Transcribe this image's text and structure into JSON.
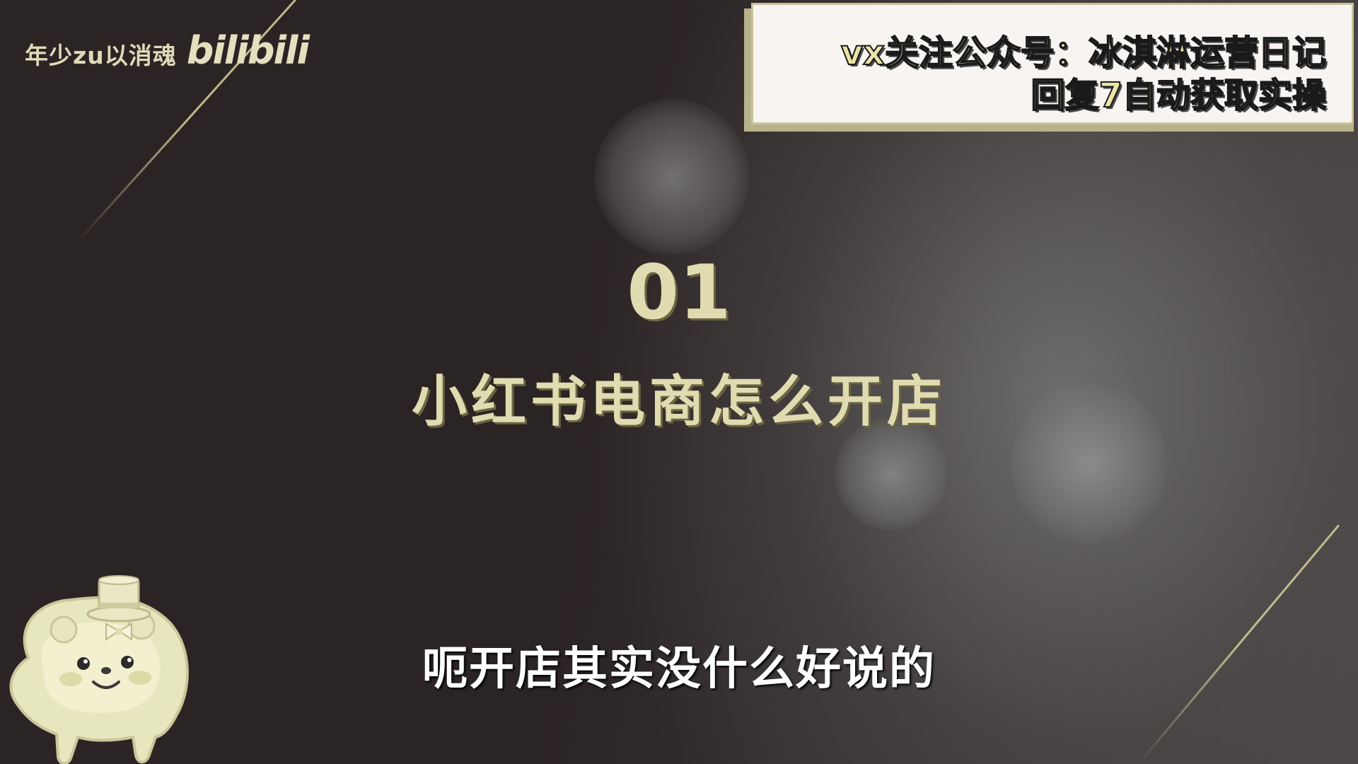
{
  "watermark": {
    "channel_text": "年少zu以消魂",
    "logo_text": "bilibili"
  },
  "promo": {
    "line1": "vx关注公众号：冰淇淋运营日记",
    "line2": "回复7自动获取实操"
  },
  "section": {
    "number": "01",
    "title": "小红书电商怎么开店"
  },
  "subtitle": "呃开店其实没什么好说的",
  "colors": {
    "gold": "#e0dbb0",
    "background": "#2b2424",
    "promo_fill": "#f7f4f1",
    "promo_text": "#ece4a8",
    "subtitle_text": "#ffffff"
  },
  "icons": {
    "mascot": "bear-mascot-icon",
    "logo": "bilibili-logo"
  }
}
